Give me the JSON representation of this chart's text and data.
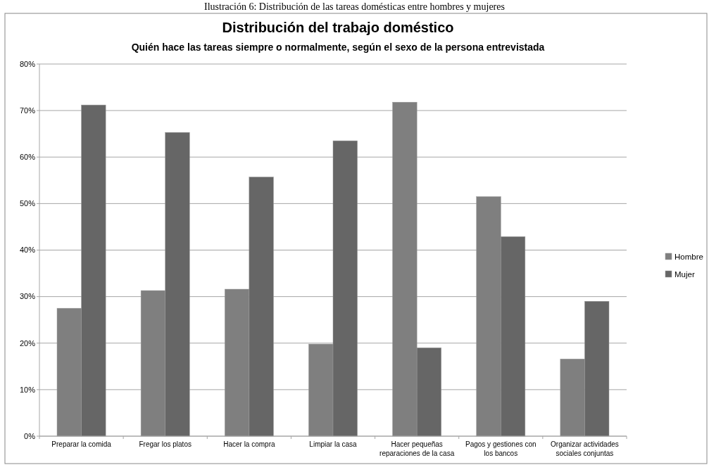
{
  "chart_data": {
    "type": "bar",
    "title": "Distribución del trabajo doméstico",
    "subtitle": "Quién hace las tareas siempre o normalmente, según el sexo de la persona entrevistada",
    "annotations": [
      "Ilustración 6: Distribución de las tareas domésticas entre hombres y mujeres"
    ],
    "categories": [
      "Preparar la comida",
      "Fregar los platos",
      "Hacer la compra",
      "Limpiar la casa",
      "Hacer pequeñas reparaciones de la casa",
      "Pagos y gestiones con los bancos",
      "Organizar actividades sociales conjuntas"
    ],
    "series": [
      {
        "name": "Hombre",
        "color": "#7f7f7f",
        "values": [
          27.5,
          31.3,
          31.6,
          19.8,
          71.8,
          51.5,
          16.6
        ]
      },
      {
        "name": "Mujer",
        "color": "#666666",
        "values": [
          71.2,
          65.3,
          55.7,
          63.5,
          19.0,
          42.9,
          29.0
        ]
      }
    ],
    "ylim": [
      0,
      80
    ],
    "yticks": [
      {
        "value": 0,
        "label": "0%"
      },
      {
        "value": 10,
        "label": "10%"
      },
      {
        "value": 20,
        "label": "20%"
      },
      {
        "value": 30,
        "label": "30%"
      },
      {
        "value": 40,
        "label": "40%"
      },
      {
        "value": 50,
        "label": "50%"
      },
      {
        "value": 60,
        "label": "60%"
      },
      {
        "value": 70,
        "label": "70%"
      },
      {
        "value": 80,
        "label": "80%"
      }
    ],
    "grid": "y",
    "legend": "right"
  }
}
